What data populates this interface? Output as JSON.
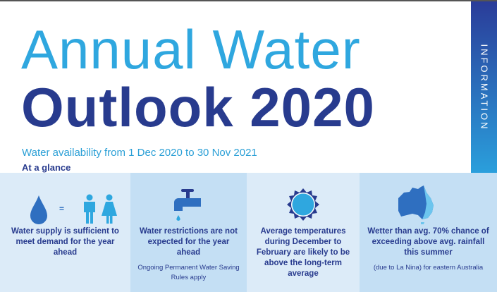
{
  "title_line1": "Annual Water",
  "title_line2": "Outlook 2020",
  "subtitle": "Water availability from 1 Dec 2020 to 30 Nov 2021",
  "section": "At a glance",
  "side_tab": "INFORMATION",
  "colors": {
    "light_blue": "#2fa7df",
    "navy": "#283b8e",
    "panel_light": "#dcebf8",
    "panel_mid": "#c4dff4"
  },
  "panels": [
    {
      "icon": "water-drop-equals-people-icon",
      "equals": "=",
      "text": "Water supply is sufficient to meet demand for the year ahead"
    },
    {
      "icon": "tap-icon",
      "text": "Water restrictions are not expected for the year ahead",
      "note": "Ongoing Permanent Water Saving Rules apply"
    },
    {
      "icon": "sun-icon",
      "text": "Average temperatures during December to February are likely to be above the long-term average"
    },
    {
      "icon": "australia-map-icon",
      "text": "Wetter than avg. 70% chance of exceeding above avg. rainfall this summer",
      "note": "(due to La Nina) for eastern Australia"
    }
  ]
}
